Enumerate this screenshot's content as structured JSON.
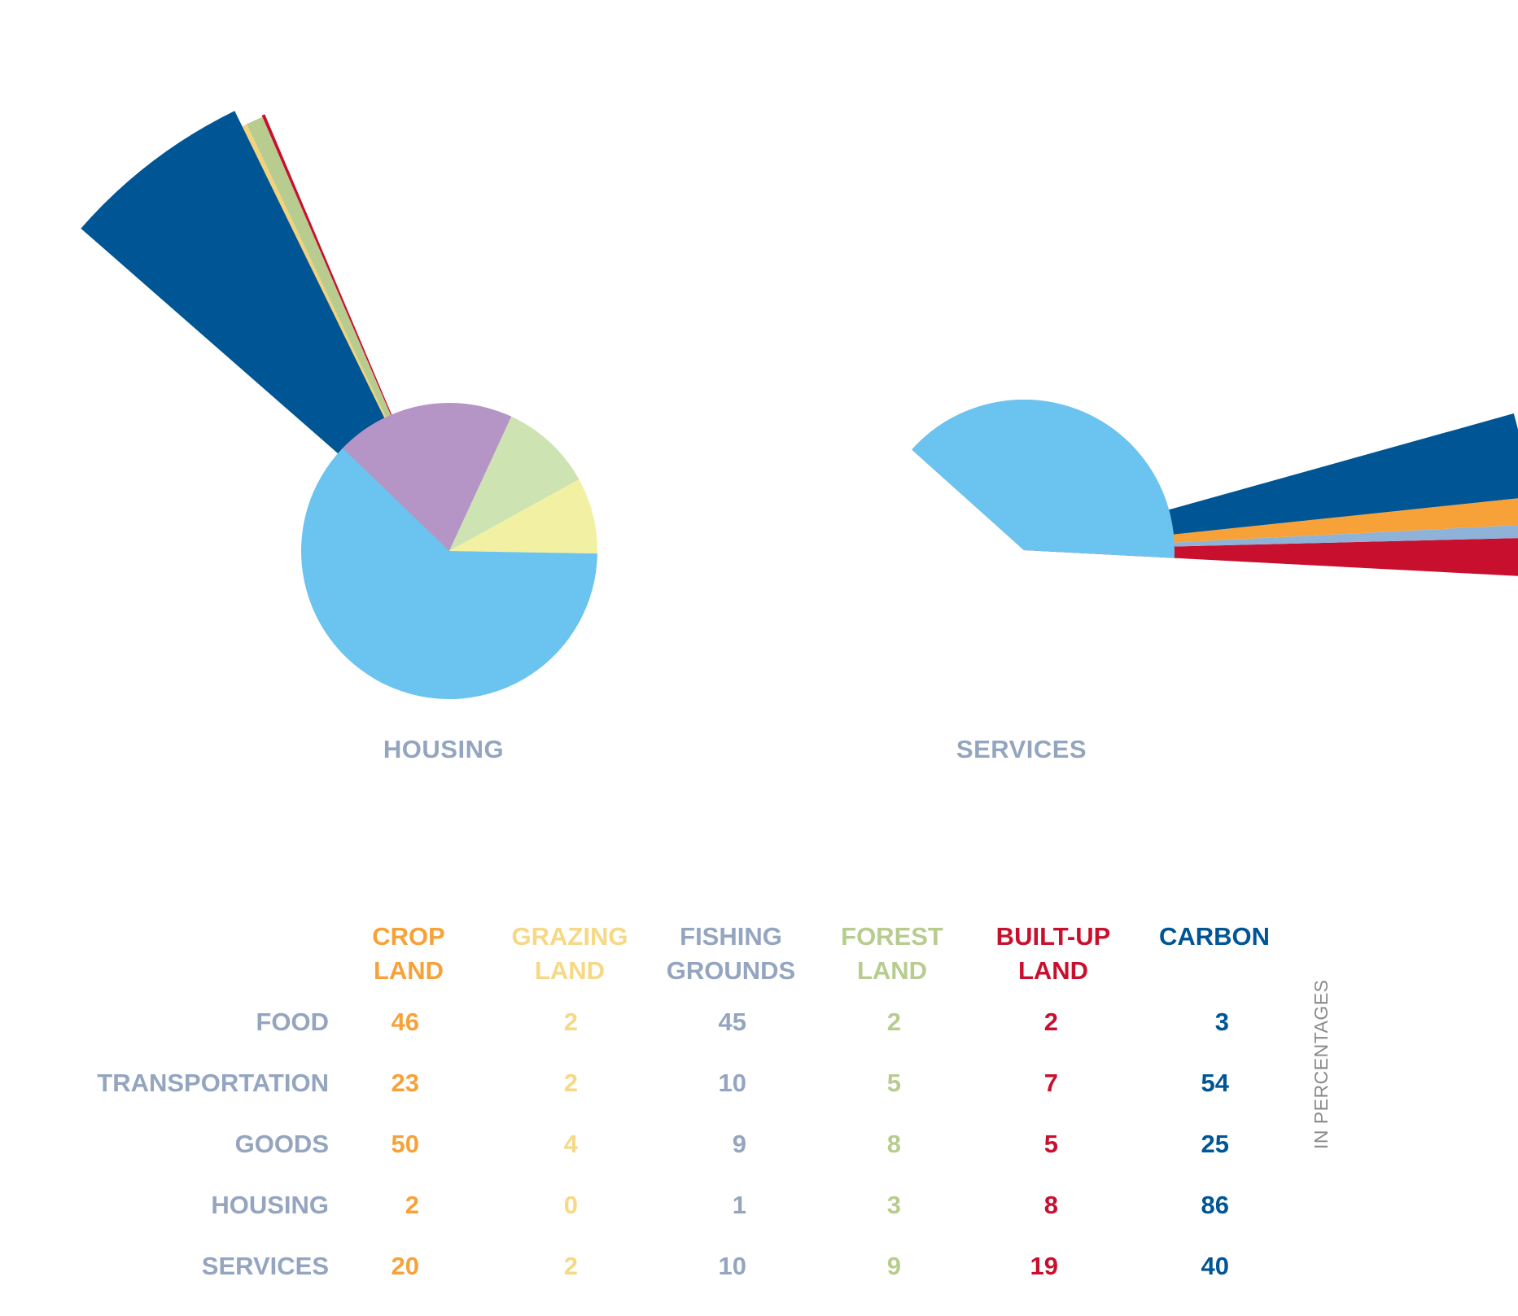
{
  "chart_data": {
    "type": "pie",
    "charts": [
      {
        "label": "HOUSING",
        "slices": [
          {
            "category": "built-up",
            "color": "#c8102e",
            "base": 2.6,
            "exploded": true
          },
          {
            "category": "forest",
            "color": "#b7cc8e",
            "base": 0.6,
            "exploded": true
          },
          {
            "category": "grazing",
            "color": "#f2d27a",
            "base": 0.4,
            "exploded": true
          },
          {
            "category": "carbon",
            "color": "#005595",
            "base": 21.6,
            "exploded": true
          },
          {
            "category": "purple",
            "color": "#b595c6"
          },
          {
            "category": "light-green",
            "color": "#cde3b1"
          },
          {
            "category": "light-yellow",
            "color": "#f2f1a3"
          },
          {
            "category": "light-blue",
            "color": "#6bc3ef"
          }
        ]
      },
      {
        "label": "SERVICES",
        "slices": [
          {
            "category": "built-up",
            "color": "#c8102e",
            "base": 2.4,
            "exploded": true
          },
          {
            "category": "fishing",
            "color": "#8fb2d8",
            "base": 1.2,
            "exploded": true
          },
          {
            "category": "crop",
            "color": "#f7a239",
            "base": 2.4,
            "exploded": true
          },
          {
            "category": "carbon",
            "color": "#005595",
            "base": 4.8,
            "exploded": true
          },
          {
            "category": "light-yellow",
            "color": "#f2f1a3"
          },
          {
            "category": "purple",
            "color": "#b595c6"
          },
          {
            "category": "dark-blue",
            "color": "#005595"
          },
          {
            "category": "light-blue",
            "color": "#6bc3ef"
          }
        ]
      }
    ],
    "table": {
      "columns": [
        {
          "key": "crop",
          "line1": "CROP",
          "line2": "LAND",
          "color": "#f7a239"
        },
        {
          "key": "grazing",
          "line1": "GRAZING",
          "line2": "LAND",
          "color": "#f6d885"
        },
        {
          "key": "fishing",
          "line1": "FISHING",
          "line2": "GROUNDS",
          "color": "#94a5bf"
        },
        {
          "key": "forest",
          "line1": "FOREST",
          "line2": "LAND",
          "color": "#b7cc8e"
        },
        {
          "key": "builtup",
          "line1": "BUILT-UP",
          "line2": "LAND",
          "color": "#c8102e"
        },
        {
          "key": "carbon",
          "line1": "CARBON",
          "line2": "",
          "color": "#005595"
        }
      ],
      "rows": [
        {
          "label": "FOOD",
          "values": [
            46,
            2,
            45,
            2,
            2,
            3
          ]
        },
        {
          "label": "TRANSPORTATION",
          "values": [
            23,
            2,
            10,
            5,
            7,
            54
          ]
        },
        {
          "label": "GOODS",
          "values": [
            50,
            4,
            9,
            8,
            5,
            25
          ]
        },
        {
          "label": "HOUSING",
          "values": [
            2,
            0,
            1,
            3,
            8,
            86
          ]
        },
        {
          "label": "SERVICES",
          "values": [
            20,
            2,
            10,
            9,
            19,
            40
          ]
        }
      ],
      "units": "IN PERCENTAGES"
    }
  }
}
